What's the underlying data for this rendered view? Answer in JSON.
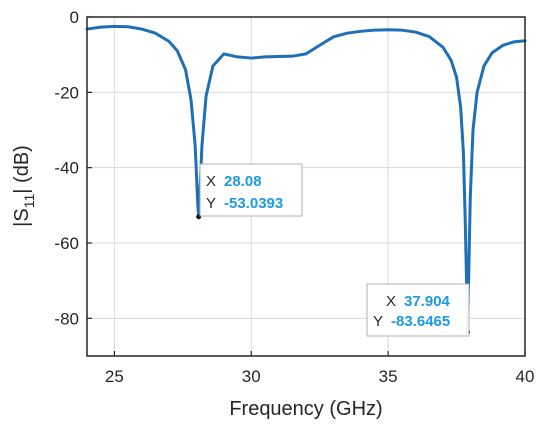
{
  "colors": {
    "line": "#1f6fb5",
    "datatip_value": "#1e9ae0",
    "grid": "#d9d9d9",
    "axis": "#262626"
  },
  "chart_data": {
    "type": "line",
    "title": "",
    "xlabel": "Frequency (GHz)",
    "ylabel_parts": [
      "|S",
      "11",
      "| (dB)"
    ],
    "xlim": [
      24,
      40
    ],
    "ylim": [
      -90,
      0
    ],
    "grid": true,
    "x_ticks": [
      25,
      30,
      35,
      40
    ],
    "y_ticks": [
      0,
      -20,
      -40,
      -60,
      -80
    ],
    "x_tick_labels": [
      "25",
      "30",
      "35",
      "40"
    ],
    "y_tick_labels": [
      "0",
      "-20",
      "-40",
      "-60",
      "-80"
    ],
    "series": [
      {
        "x": [
          24.0,
          24.5,
          25.0,
          25.5,
          26.0,
          26.5,
          27.0,
          27.3,
          27.6,
          27.8,
          27.95,
          28.0,
          28.05,
          28.08,
          28.12,
          28.2,
          28.35,
          28.6,
          29.0,
          29.5,
          30.0,
          30.5,
          31.0,
          31.5,
          32.0,
          32.5,
          33.0,
          33.5,
          34.0,
          34.5,
          35.0,
          35.5,
          36.0,
          36.5,
          37.0,
          37.3,
          37.5,
          37.65,
          37.75,
          37.82,
          37.87,
          37.904,
          37.94,
          38.0,
          38.1,
          38.25,
          38.5,
          38.8,
          39.2,
          39.6,
          40.0
        ],
        "y": [
          -3.2,
          -2.7,
          -2.5,
          -2.6,
          -3.2,
          -4.3,
          -6.5,
          -9.0,
          -14.0,
          -22.0,
          -34.0,
          -42.0,
          -50.0,
          -53.0393,
          -47.0,
          -34.0,
          -21.0,
          -13.0,
          -9.8,
          -10.6,
          -10.9,
          -10.6,
          -10.5,
          -10.4,
          -9.8,
          -7.5,
          -5.3,
          -4.3,
          -3.8,
          -3.5,
          -3.4,
          -3.5,
          -4.0,
          -5.2,
          -8.0,
          -11.5,
          -16.0,
          -24.0,
          -36.0,
          -55.0,
          -72.0,
          -83.6465,
          -70.0,
          -48.0,
          -30.0,
          -20.0,
          -13.0,
          -9.5,
          -7.5,
          -6.6,
          -6.3
        ]
      }
    ],
    "datatips": [
      {
        "x_key": "X",
        "y_key": "Y",
        "x_text": "28.08",
        "y_text": "-53.0393",
        "x": 28.08,
        "y": -53.0393
      },
      {
        "x_key": "X",
        "y_key": "Y",
        "x_text": "37.904",
        "y_text": "-83.6465",
        "x": 37.904,
        "y": -83.6465
      }
    ]
  }
}
